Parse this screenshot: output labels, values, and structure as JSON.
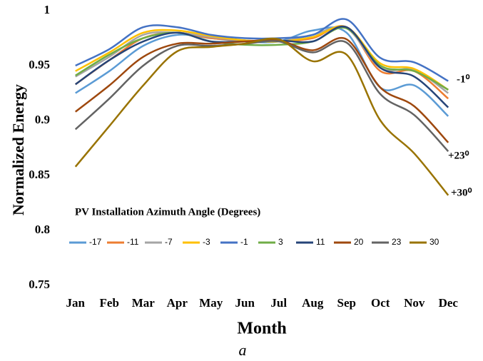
{
  "chart_data": {
    "type": "line",
    "y_label": "Normalized Energy",
    "x_label": "Month",
    "caption": "a",
    "legend_title": "PV Installation Azimuth Angle (Degrees)",
    "categories": [
      "Jan",
      "Feb",
      "Mar",
      "Apr",
      "May",
      "Jun",
      "Jul",
      "Aug",
      "Sep",
      "Oct",
      "Nov",
      "Dec"
    ],
    "ylim": [
      0.75,
      1
    ],
    "yticks": [
      0.75,
      0.8,
      0.85,
      0.9,
      0.95,
      1
    ],
    "grid": false,
    "annotations": [
      {
        "text": "-1⁰"
      },
      {
        "text": "+23⁰"
      },
      {
        "text": "+30⁰"
      }
    ],
    "series": [
      {
        "name": "-17",
        "color": "#5b9bd5",
        "values": [
          0.925,
          0.945,
          0.968,
          0.978,
          0.975,
          0.972,
          0.972,
          0.982,
          0.98,
          0.93,
          0.932,
          0.904
        ]
      },
      {
        "name": "-11",
        "color": "#ed7d31",
        "values": [
          0.933,
          0.955,
          0.975,
          0.98,
          0.975,
          0.973,
          0.972,
          0.975,
          0.985,
          0.945,
          0.945,
          0.92
        ]
      },
      {
        "name": "-7",
        "color": "#a5a5a5",
        "values": [
          0.94,
          0.958,
          0.978,
          0.98,
          0.976,
          0.973,
          0.972,
          0.978,
          0.984,
          0.948,
          0.946,
          0.925
        ]
      },
      {
        "name": "-3",
        "color": "#ffc000",
        "values": [
          0.945,
          0.962,
          0.98,
          0.982,
          0.977,
          0.973,
          0.972,
          0.976,
          0.985,
          0.952,
          0.947,
          0.928
        ]
      },
      {
        "name": "-1",
        "color": "#4472c4",
        "values": [
          0.95,
          0.965,
          0.985,
          0.985,
          0.978,
          0.975,
          0.975,
          0.978,
          0.992,
          0.957,
          0.953,
          0.936
        ]
      },
      {
        "name": "3",
        "color": "#70ad47",
        "values": [
          0.941,
          0.96,
          0.975,
          0.98,
          0.972,
          0.969,
          0.969,
          0.972,
          0.984,
          0.95,
          0.945,
          0.928
        ]
      },
      {
        "name": "11",
        "color": "#264478",
        "values": [
          0.933,
          0.955,
          0.972,
          0.98,
          0.972,
          0.972,
          0.973,
          0.972,
          0.985,
          0.948,
          0.94,
          0.912
        ]
      },
      {
        "name": "20",
        "color": "#9e480e",
        "values": [
          0.908,
          0.932,
          0.958,
          0.97,
          0.97,
          0.972,
          0.973,
          0.964,
          0.974,
          0.93,
          0.913,
          0.88
        ]
      },
      {
        "name": "23",
        "color": "#636363",
        "values": [
          0.892,
          0.92,
          0.95,
          0.968,
          0.968,
          0.97,
          0.972,
          0.962,
          0.971,
          0.924,
          0.905,
          0.872
        ]
      },
      {
        "name": "30",
        "color": "#997300",
        "values": [
          0.858,
          0.895,
          0.932,
          0.963,
          0.967,
          0.97,
          0.974,
          0.954,
          0.96,
          0.9,
          0.87,
          0.832
        ]
      }
    ]
  }
}
